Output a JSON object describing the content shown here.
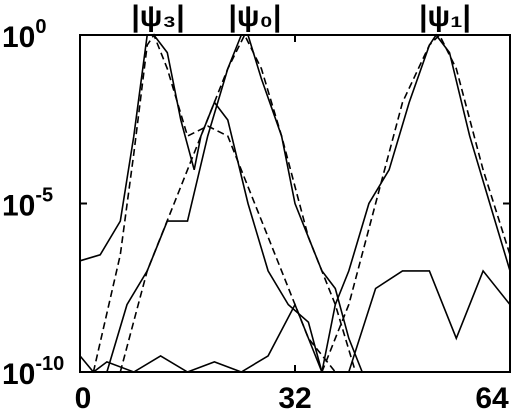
{
  "chart_data": {
    "type": "line",
    "yscale": "log",
    "xlim": [
      0,
      64
    ],
    "xticks": [
      0,
      32,
      64
    ],
    "ylim": [
      1e-10,
      1
    ],
    "yticks": [
      {
        "value": 1,
        "label": "10",
        "exponent": "0"
      },
      {
        "value": 1e-05,
        "label": "10",
        "exponent": "-5"
      },
      {
        "value": 1e-10,
        "label": "10",
        "exponent": "-10"
      }
    ],
    "annotations": [
      "|ψ₃|",
      "|ψ₀|",
      "|ψ₁|"
    ],
    "series": [
      {
        "color": "#000000",
        "dash": false,
        "x": [
          0,
          3,
          6,
          8,
          10,
          11,
          13,
          15,
          17,
          18,
          20,
          22,
          25,
          28,
          31,
          34,
          36
        ],
        "values": [
          2e-07,
          3e-07,
          3e-06,
          0.001,
          1,
          1,
          0.3,
          0.003,
          0.0001,
          0.001,
          0.01,
          0.003,
          1e-05,
          1e-07,
          1e-08,
          3e-09,
          1e-10
        ]
      },
      {
        "color": "#000000",
        "dash": true,
        "x": [
          2,
          6,
          8,
          10,
          11,
          13,
          16,
          19,
          22,
          26,
          30,
          34,
          38
        ],
        "values": [
          1e-10,
          3e-07,
          0.0003,
          0.5,
          1,
          0.1,
          0.001,
          0.002,
          0.001,
          1e-05,
          1e-07,
          1e-09,
          1e-10
        ]
      },
      {
        "color": "#000000",
        "dash": false,
        "x": [
          4,
          7,
          10,
          13,
          16,
          19,
          22,
          24,
          25,
          27,
          30,
          32,
          34,
          36,
          38,
          40,
          42
        ],
        "values": [
          1e-10,
          1e-08,
          1e-07,
          3e-06,
          3e-06,
          0.001,
          0.1,
          1,
          1,
          0.05,
          0.001,
          1e-05,
          1e-06,
          1e-07,
          3e-08,
          1e-09,
          1e-10
        ]
      },
      {
        "color": "#000000",
        "dash": true,
        "x": [
          6,
          10,
          14,
          18,
          22,
          24.5,
          27,
          30,
          34,
          38,
          41
        ],
        "values": [
          1e-10,
          1e-07,
          1e-05,
          0.001,
          0.1,
          1,
          0.1,
          0.001,
          1e-06,
          1e-08,
          1e-10
        ]
      },
      {
        "color": "#000000",
        "dash": false,
        "x": [
          36,
          38,
          40,
          43,
          46,
          49,
          52,
          53,
          55,
          58,
          61,
          64
        ],
        "values": [
          1e-10,
          1e-08,
          1e-07,
          1e-05,
          0.0001,
          0.01,
          0.5,
          1,
          0.3,
          0.001,
          1e-05,
          1e-07
        ]
      },
      {
        "color": "#000000",
        "dash": true,
        "x": [
          36,
          40,
          44,
          48,
          52,
          53.5,
          56,
          60,
          64
        ],
        "values": [
          1e-10,
          1e-08,
          1e-05,
          0.01,
          0.5,
          1,
          0.1,
          0.0001,
          3e-07
        ]
      },
      {
        "color": "#000000",
        "dash": false,
        "x": [
          0,
          2,
          4,
          8,
          12,
          16,
          20,
          24,
          28,
          32,
          36,
          40,
          44,
          48,
          52,
          56,
          60,
          64
        ],
        "values": [
          3e-10,
          1e-10,
          2e-10,
          1e-10,
          3e-10,
          1e-10,
          2e-10,
          1e-10,
          3e-10,
          1e-08,
          1e-10,
          1e-10,
          3e-08,
          1e-07,
          1e-07,
          1e-09,
          1e-07,
          1e-08
        ]
      }
    ]
  }
}
